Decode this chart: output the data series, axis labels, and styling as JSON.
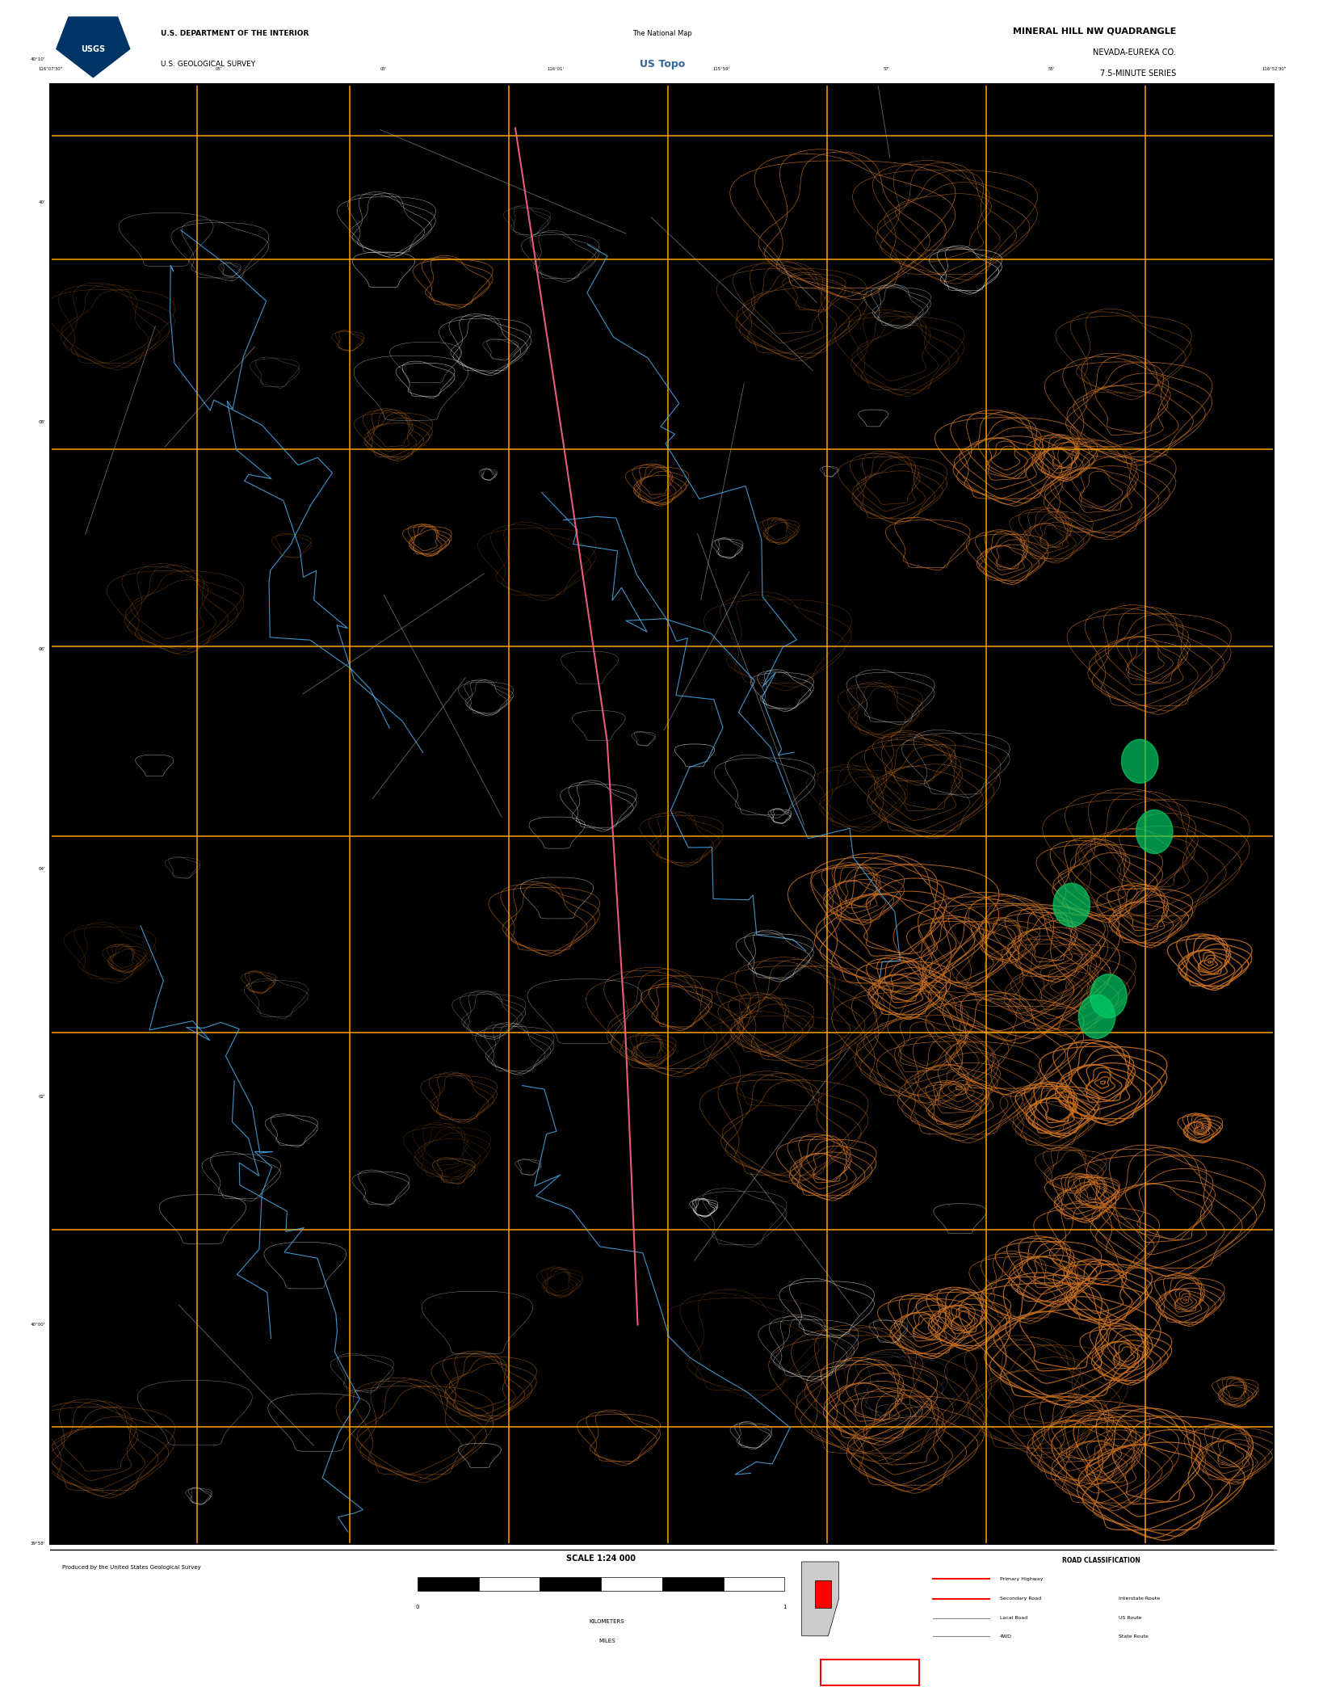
{
  "title": "MINERAL HILL NW QUADRANGLE",
  "subtitle1": "NEVADA-EUREKA CO.",
  "subtitle2": "7.5-MINUTE SERIES",
  "agency": "U.S. DEPARTMENT OF THE INTERIOR",
  "survey": "U.S. GEOLOGICAL SURVEY",
  "topo_brand": "US Topo",
  "national_map": "The National Map",
  "scale_text": "SCALE 1:24 000",
  "produced_by": "Produced by the United States Geological Survey",
  "figure_size": [
    16.38,
    20.88
  ],
  "dpi": 100,
  "map_bg": "#000000",
  "header_bg": "#ffffff",
  "footer_bg": "#ffffff",
  "black_bar_bg": "#1a1a1a",
  "contour_color": "#c87020",
  "contour_color2": "#ffffff",
  "grid_color": "#ffa500",
  "water_color": "#4db8ff",
  "road_color_primary": "#ff6688",
  "road_color_secondary": "#aaaaaa",
  "topo_brand_color": "#336699",
  "red_box_color": "#ff0000"
}
